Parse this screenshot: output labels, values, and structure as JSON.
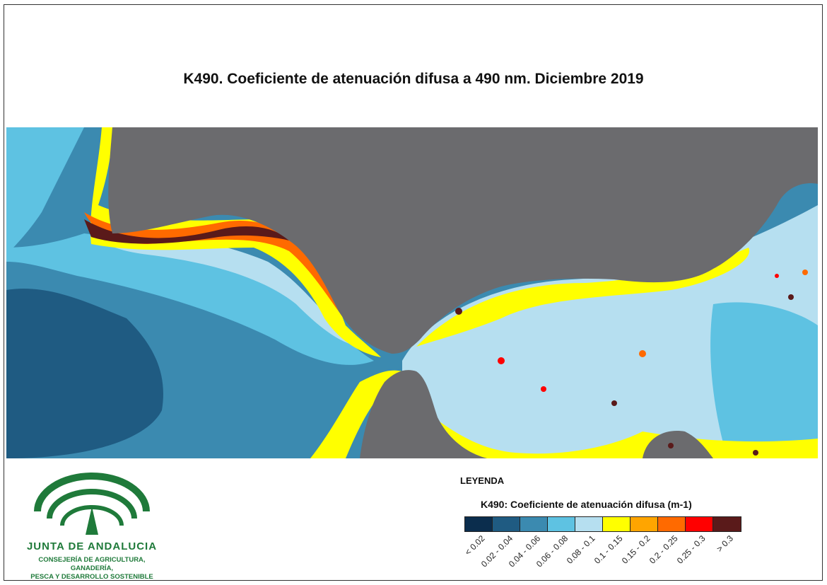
{
  "title": "K490. Coeficiente de atenuación difusa a 490 nm. Diciembre 2019",
  "legend": {
    "heading": "LEYENDA",
    "title": "K490: Coeficiente de atenuación difusa (m-1)",
    "classes": [
      {
        "label": "< 0.02",
        "color": "#0b2d4d"
      },
      {
        "label": "0.02 - 0.04",
        "color": "#1f5b82"
      },
      {
        "label": "0.04 - 0.06",
        "color": "#3b8ab0"
      },
      {
        "label": "0.06 - 0.08",
        "color": "#5ec2e2"
      },
      {
        "label": "0.08 - 0.1",
        "color": "#b6dff0"
      },
      {
        "label": "0.1 - 0.15",
        "color": "#ffff00"
      },
      {
        "label": "0.15 - 0.2",
        "color": "#ffa500"
      },
      {
        "label": "0.2 - 0.25",
        "color": "#ff6a00"
      },
      {
        "label": "0.25 - 0.3",
        "color": "#ff0000"
      },
      {
        "label": "> 0.3",
        "color": "#5a1a1a"
      }
    ]
  },
  "map": {
    "land_color": "#6b6b6e",
    "ocean_color": "#3b8ab0"
  },
  "logo": {
    "name": "JUNTA DE ANDALUCIA",
    "subtitle_line1": "CONSEJERÍA DE AGRICULTURA, GANADERÍA,",
    "subtitle_line2": "PESCA Y DESARROLLO SOSTENIBLE",
    "color": "#1f7a3a"
  }
}
